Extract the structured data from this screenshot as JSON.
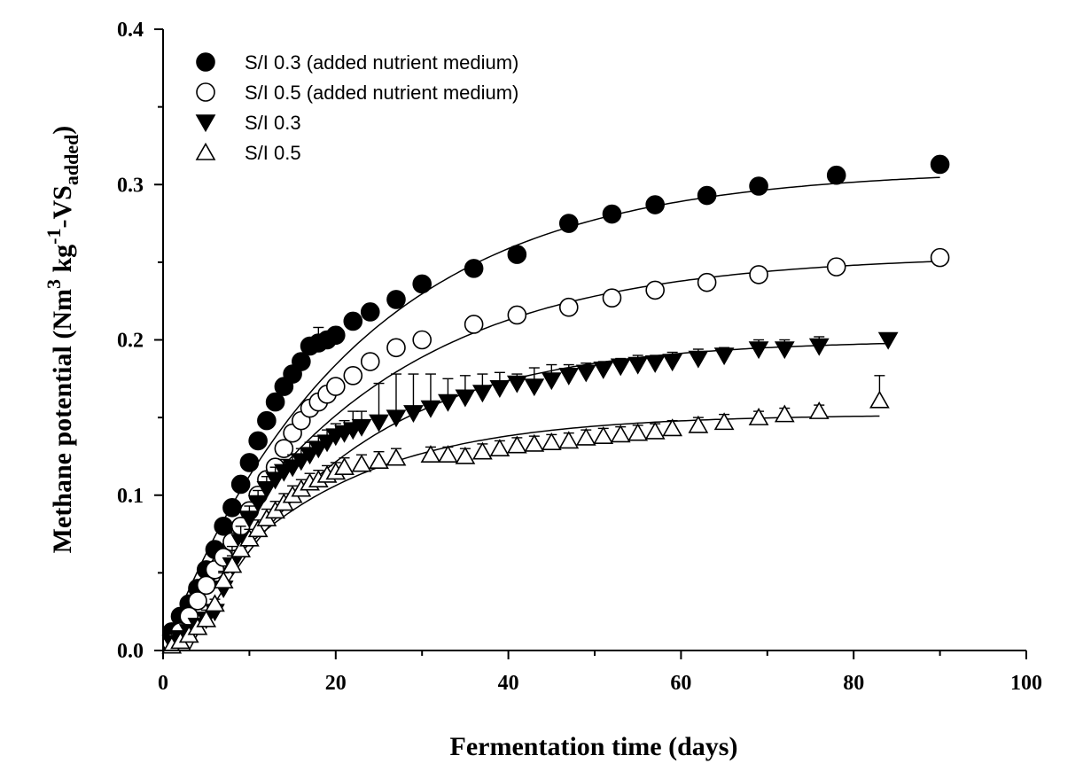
{
  "chart_data": {
    "type": "scatter",
    "title": "",
    "xlabel": "Fermentation time (days)",
    "ylabel_parts": [
      "Methane potential (Nm",
      "3",
      " kg",
      "-1",
      "-VS",
      "added",
      ")"
    ],
    "xlim": [
      0,
      100
    ],
    "ylim": [
      0,
      0.4
    ],
    "xticks": [
      "0",
      "20",
      "40",
      "60",
      "80",
      "100"
    ],
    "xtick_values": [
      0,
      20,
      40,
      60,
      80,
      100
    ],
    "yticks": [
      "0.0",
      "0.1",
      "0.2",
      "0.3",
      "0.4"
    ],
    "ytick_values": [
      0,
      0.1,
      0.2,
      0.3,
      0.4
    ],
    "legend_position": "top-left",
    "series": [
      {
        "name": "S/I 0.3 (added nutrient medium)",
        "marker": "filled-circle",
        "x": [
          1,
          2,
          3,
          4,
          5,
          6,
          7,
          8,
          9,
          10,
          11,
          12,
          13,
          14,
          15,
          16,
          17,
          18,
          19,
          20,
          22,
          24,
          27,
          30,
          36,
          41,
          47,
          52,
          57,
          63,
          69,
          78,
          90
        ],
        "y": [
          0.012,
          0.022,
          0.03,
          0.04,
          0.052,
          0.065,
          0.08,
          0.092,
          0.107,
          0.121,
          0.135,
          0.148,
          0.16,
          0.17,
          0.178,
          0.186,
          0.196,
          0.198,
          0.2,
          0.203,
          0.212,
          0.218,
          0.226,
          0.236,
          0.246,
          0.255,
          0.275,
          0.281,
          0.287,
          0.293,
          0.299,
          0.306,
          0.313
        ],
        "err": [
          0,
          0,
          0,
          0,
          0,
          0,
          0,
          0,
          0,
          0,
          0,
          0,
          0,
          0,
          0,
          0,
          0,
          0.01,
          0.004,
          0,
          0,
          0,
          0,
          0,
          0,
          0.005,
          0,
          0,
          0,
          0,
          0,
          0,
          0
        ],
        "fit": {
          "a": 0.31,
          "k": 0.045,
          "d": 0.0
        }
      },
      {
        "name": "S/I 0.5 (added nutrient medium)",
        "marker": "open-circle",
        "x": [
          1,
          2,
          3,
          4,
          5,
          6,
          7,
          8,
          9,
          10,
          11,
          12,
          13,
          14,
          15,
          16,
          17,
          18,
          19,
          20,
          22,
          24,
          27,
          30,
          36,
          41,
          47,
          52,
          57,
          63,
          69,
          78,
          90
        ],
        "y": [
          0.005,
          0.012,
          0.022,
          0.032,
          0.042,
          0.052,
          0.06,
          0.07,
          0.08,
          0.09,
          0.1,
          0.11,
          0.118,
          0.13,
          0.14,
          0.148,
          0.156,
          0.16,
          0.165,
          0.17,
          0.177,
          0.186,
          0.195,
          0.2,
          0.21,
          0.216,
          0.221,
          0.227,
          0.232,
          0.237,
          0.242,
          0.247,
          0.253
        ],
        "err": [
          0,
          0,
          0,
          0,
          0,
          0,
          0,
          0,
          0,
          0,
          0,
          0,
          0,
          0,
          0,
          0,
          0,
          0,
          0,
          0,
          0,
          0,
          0,
          0,
          0,
          0,
          0,
          0,
          0,
          0,
          0,
          0,
          0
        ],
        "fit": {
          "a": 0.255,
          "k": 0.045,
          "d": 0.0
        }
      },
      {
        "name": "S/I 0.3",
        "marker": "filled-triangle-down",
        "x": [
          1,
          2,
          3,
          4,
          5,
          6,
          7,
          8,
          9,
          10,
          11,
          12,
          13,
          14,
          15,
          16,
          17,
          18,
          19,
          20,
          21,
          22,
          23,
          25,
          27,
          29,
          31,
          33,
          35,
          37,
          39,
          41,
          43,
          45,
          47,
          49,
          51,
          53,
          55,
          57,
          59,
          62,
          65,
          69,
          72,
          76,
          84
        ],
        "y": [
          0.005,
          0.008,
          0.012,
          0.016,
          0.02,
          0.025,
          0.04,
          0.055,
          0.07,
          0.085,
          0.095,
          0.104,
          0.11,
          0.115,
          0.118,
          0.122,
          0.126,
          0.13,
          0.134,
          0.138,
          0.14,
          0.142,
          0.144,
          0.147,
          0.15,
          0.153,
          0.156,
          0.16,
          0.163,
          0.166,
          0.169,
          0.172,
          0.17,
          0.174,
          0.177,
          0.179,
          0.181,
          0.183,
          0.184,
          0.185,
          0.186,
          0.188,
          0.19,
          0.194,
          0.194,
          0.196,
          0.2
        ],
        "err": [
          0,
          0,
          0,
          0,
          0.006,
          0.008,
          0.01,
          0.012,
          0.01,
          0.008,
          0.008,
          0.008,
          0.008,
          0.008,
          0.008,
          0.008,
          0.008,
          0.008,
          0.008,
          0.008,
          0.008,
          0.012,
          0.01,
          0.025,
          0.028,
          0.025,
          0.022,
          0.015,
          0.014,
          0.012,
          0.01,
          0.006,
          0.012,
          0.01,
          0.007,
          0.006,
          0.005,
          0.005,
          0.006,
          0.005,
          0.006,
          0.006,
          0.005,
          0.006,
          0.006,
          0.006,
          0.004
        ],
        "fit": {
          "a": 0.2,
          "k": 0.055,
          "d": 3.0
        }
      },
      {
        "name": "S/I 0.5",
        "marker": "open-triangle-up",
        "x": [
          1,
          2,
          3,
          4,
          5,
          6,
          7,
          8,
          9,
          10,
          11,
          12,
          13,
          14,
          15,
          16,
          17,
          18,
          19,
          20,
          21,
          23,
          25,
          27,
          31,
          33,
          35,
          37,
          39,
          41,
          43,
          45,
          47,
          49,
          51,
          53,
          55,
          57,
          59,
          62,
          65,
          69,
          72,
          76,
          83
        ],
        "y": [
          0.003,
          0.006,
          0.01,
          0.015,
          0.02,
          0.03,
          0.045,
          0.055,
          0.065,
          0.072,
          0.078,
          0.085,
          0.09,
          0.095,
          0.1,
          0.104,
          0.108,
          0.11,
          0.113,
          0.115,
          0.118,
          0.12,
          0.122,
          0.124,
          0.126,
          0.126,
          0.125,
          0.128,
          0.13,
          0.132,
          0.133,
          0.134,
          0.135,
          0.137,
          0.138,
          0.139,
          0.14,
          0.141,
          0.143,
          0.145,
          0.147,
          0.15,
          0.152,
          0.154,
          0.161
        ],
        "err": [
          0,
          0,
          0,
          0,
          0,
          0,
          0.006,
          0.006,
          0.006,
          0.006,
          0.006,
          0.006,
          0.006,
          0.006,
          0.006,
          0.006,
          0.006,
          0.006,
          0.006,
          0.006,
          0.006,
          0.006,
          0.006,
          0.006,
          0.005,
          0.005,
          0.005,
          0.005,
          0.005,
          0.005,
          0.005,
          0.005,
          0.005,
          0.005,
          0.005,
          0.005,
          0.005,
          0.005,
          0.005,
          0.005,
          0.005,
          0.004,
          0.004,
          0.004,
          0.016
        ],
        "fit": {
          "a": 0.152,
          "k": 0.06,
          "d": 0.0
        }
      }
    ]
  }
}
